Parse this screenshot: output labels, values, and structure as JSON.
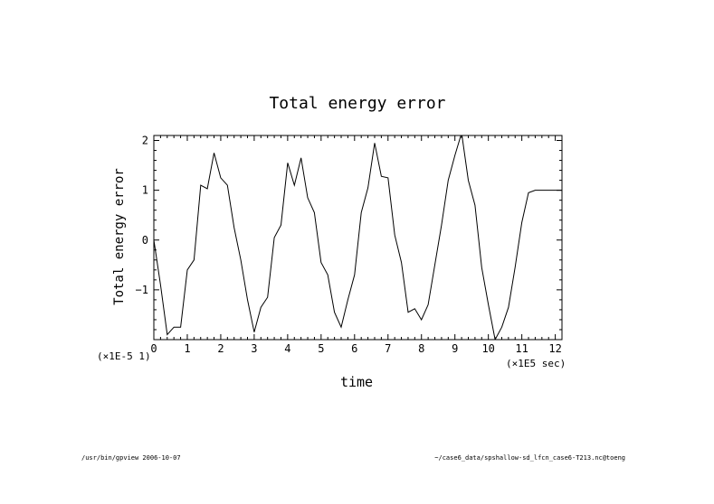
{
  "chart_data": {
    "type": "line",
    "title": "Total energy error",
    "xlabel": "time",
    "ylabel": "Total energy error",
    "x_scale_note": "(×1E5 sec)",
    "y_scale_note": "(×1E-5 1)",
    "xlim": [
      0,
      12.2
    ],
    "ylim": [
      -2,
      2.1
    ],
    "xticks": [
      "0",
      "1",
      "2",
      "3",
      "4",
      "5",
      "6",
      "7",
      "8",
      "9",
      "10",
      "11",
      "12"
    ],
    "yticks": [
      "2",
      "1",
      "0",
      "−1"
    ],
    "xtick_values": [
      0,
      1,
      2,
      3,
      4,
      5,
      6,
      7,
      8,
      9,
      10,
      11,
      12
    ],
    "ytick_values": [
      2,
      1,
      0,
      -1
    ],
    "series": [
      {
        "x": [
          0,
          0.2,
          0.4,
          0.6,
          0.8,
          1.0,
          1.2,
          1.4,
          1.6,
          1.8,
          2.0,
          2.2,
          2.4,
          2.6,
          2.8,
          3.0,
          3.2,
          3.4,
          3.6,
          3.8,
          4.0,
          4.2,
          4.4,
          4.6,
          4.8,
          5.0,
          5.2,
          5.4,
          5.6,
          5.8,
          6.0,
          6.2,
          6.4,
          6.6,
          6.8,
          7.0,
          7.2,
          7.4,
          7.6,
          7.8,
          8.0,
          8.2,
          8.4,
          8.6,
          8.8,
          9.0,
          9.2,
          9.4,
          9.6,
          9.8,
          10.0,
          10.2,
          10.4,
          10.6,
          10.8,
          11.0,
          11.2,
          11.4,
          11.6,
          11.8,
          12.0,
          12.2
        ],
        "values": [
          0.0,
          -0.9,
          -1.9,
          -1.75,
          -1.75,
          -0.6,
          -0.4,
          1.1,
          1.03,
          1.75,
          1.25,
          1.1,
          0.25,
          -0.4,
          -1.2,
          -1.85,
          -1.35,
          -1.15,
          0.05,
          0.3,
          1.55,
          1.1,
          1.65,
          0.85,
          0.55,
          -0.45,
          -0.7,
          -1.45,
          -1.75,
          -1.2,
          -0.7,
          0.55,
          1.05,
          1.95,
          1.28,
          1.25,
          0.1,
          -0.45,
          -1.45,
          -1.38,
          -1.6,
          -1.3,
          -0.5,
          0.3,
          1.2,
          1.7,
          2.15,
          1.2,
          0.7,
          -0.55,
          -1.3,
          -2.0,
          -1.75,
          -1.35,
          -0.55,
          0.35,
          0.95,
          1.0,
          1.0,
          1.0,
          1.0,
          1.0
        ]
      }
    ]
  },
  "footer": {
    "left": "/usr/bin/gpview  2006-10-07",
    "right": "~/case6_data/spshallow-sd_lfcn_case6-T213.nc@toeng"
  },
  "colors": {
    "line": "#000000",
    "background": "#ffffff"
  }
}
